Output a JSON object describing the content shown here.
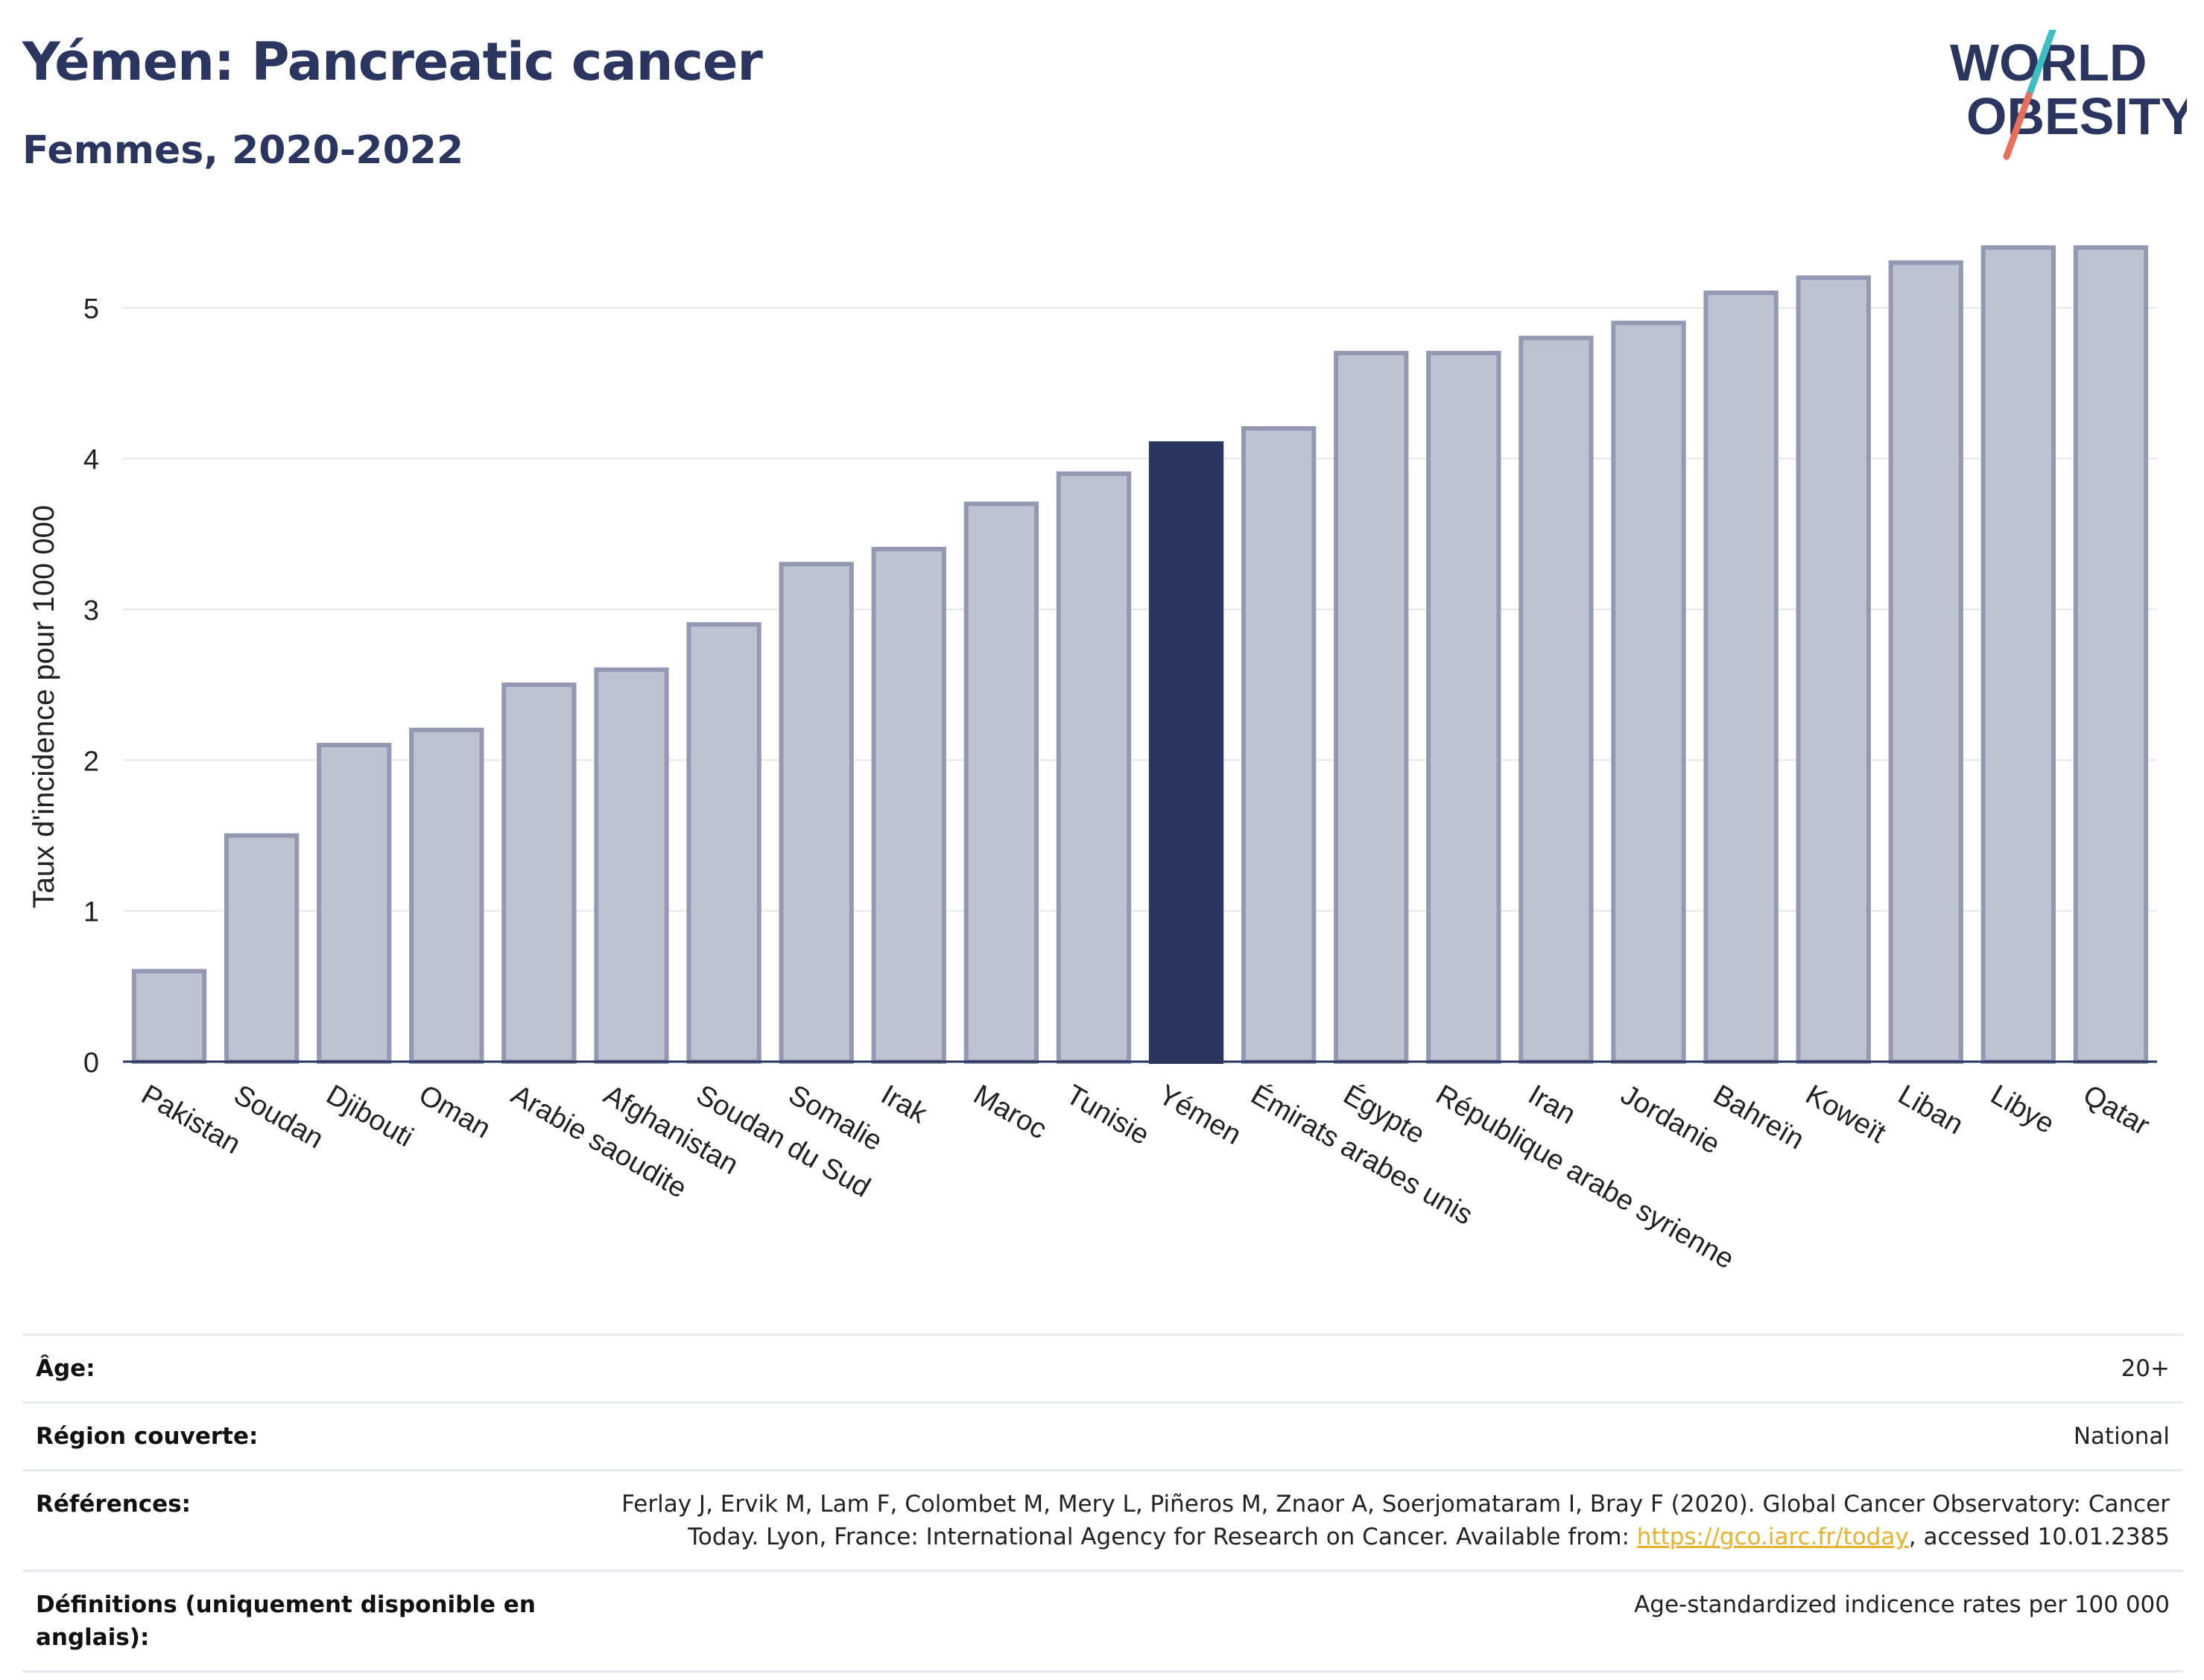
{
  "header": {
    "title": "Yémen: Pancreatic cancer",
    "subtitle": "Femmes, 2020-2022",
    "logo_line1": "WORLD",
    "logo_line2": "OBESITY"
  },
  "chart_data": {
    "type": "bar",
    "title": "Yémen: Pancreatic cancer",
    "subtitle": "Femmes, 2020-2022",
    "ylabel": "Taux d'incidence pour 100 000",
    "xlabel": "",
    "ylim": [
      0,
      5.5
    ],
    "yticks": [
      0,
      1,
      2,
      3,
      4,
      5
    ],
    "grid": true,
    "highlight": "Yémen",
    "categories": [
      "Pakistan",
      "Soudan",
      "Djibouti",
      "Oman",
      "Arabie saoudite",
      "Afghanistan",
      "Soudan du Sud",
      "Somalie",
      "Irak",
      "Maroc",
      "Tunisie",
      "Yémen",
      "Émirats arabes unis",
      "Égypte",
      "République arabe syrienne",
      "Iran",
      "Jordanie",
      "Bahreïn",
      "Koweït",
      "Liban",
      "Libye",
      "Qatar"
    ],
    "values": [
      0.6,
      1.5,
      2.1,
      2.2,
      2.5,
      2.6,
      2.9,
      3.3,
      3.4,
      3.7,
      3.9,
      4.1,
      4.2,
      4.7,
      4.7,
      4.8,
      4.9,
      5.1,
      5.2,
      5.3,
      5.4,
      5.4
    ]
  },
  "colors": {
    "bar": "#bfc2d0",
    "bar_border": "#9499b3",
    "highlight": "#2a3560",
    "grid": "#e4e6ec",
    "axis": "#2a3560",
    "title": "#2a3560",
    "logo_teal": "#3bbfc3",
    "logo_coral": "#e8705a"
  },
  "meta": {
    "age_label": "Âge:",
    "age_value": "20+",
    "region_label": "Région couverte:",
    "region_value": "National",
    "refs_label": "Références:",
    "refs_value_1": "Ferlay J, Ervik M, Lam F, Colombet M, Mery L, Piñeros M, Znaor A, Soerjomataram I, Bray F (2020). Global Cancer Observatory: Cancer Today. Lyon, France: International Agency for Research on Cancer. Available from: ",
    "refs_link": "https://gco.iarc.fr/today",
    "refs_value_2": ", accessed 10.01.2385",
    "defs_label": "Définitions (uniquement disponible en anglais):",
    "defs_value": "Age-standardized indicence rates per 100 000"
  }
}
